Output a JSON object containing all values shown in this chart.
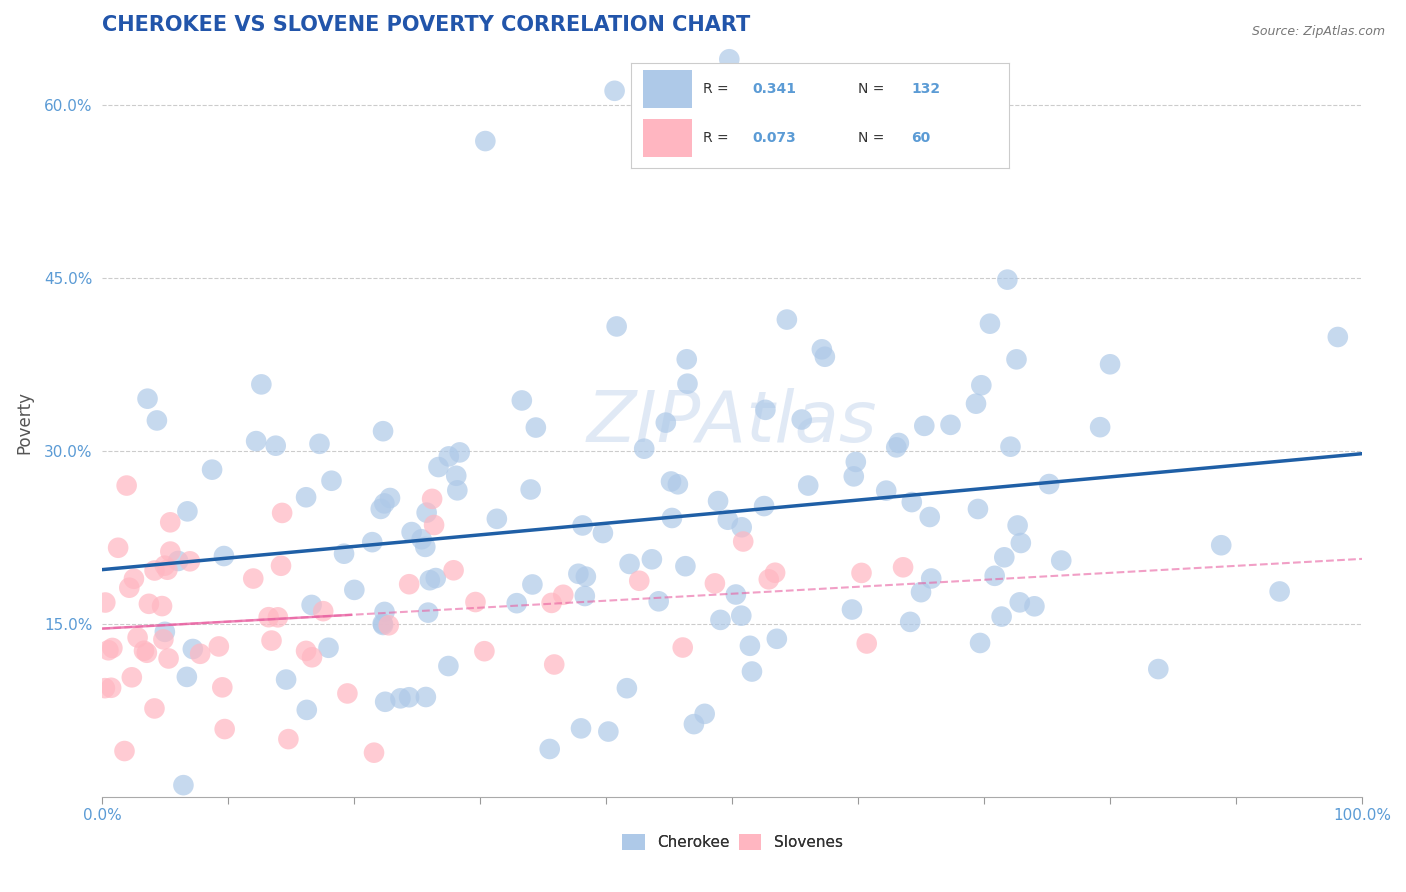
{
  "title": "CHEROKEE VS SLOVENE POVERTY CORRELATION CHART",
  "source": "Source: ZipAtlas.com",
  "ylabel": "Poverty",
  "xlim": [
    0.0,
    1.0
  ],
  "ylim": [
    0.0,
    0.65
  ],
  "xticks": [
    0.0,
    0.1,
    0.2,
    0.3,
    0.4,
    0.5,
    0.6,
    0.7,
    0.8,
    0.9,
    1.0
  ],
  "xticklabels": [
    "0.0%",
    "",
    "",
    "",
    "",
    "",
    "",
    "",
    "",
    "",
    "100.0%"
  ],
  "yticks": [
    0.15,
    0.3,
    0.45,
    0.6
  ],
  "yticklabels": [
    "15.0%",
    "30.0%",
    "45.0%",
    "60.0%"
  ],
  "cherokee_color": "#5b9bd5",
  "cherokee_face": "#aec9e8",
  "slovene_color": "#f768a1",
  "slovene_face": "#ffb6c1",
  "cherokee_R": 0.341,
  "cherokee_N": 132,
  "slovene_R": 0.073,
  "slovene_N": 60,
  "legend_label1": "Cherokee",
  "legend_label2": "Slovenes",
  "title_color": "#2255aa",
  "title_fontsize": 15,
  "watermark": "ZIPAtlas",
  "background_color": "#ffffff",
  "grid_color": "#cccccc",
  "tick_color": "#5b9bd5",
  "cherokee_line_color": "#1f5fa6",
  "slovene_line_color": "#e85fa0",
  "legend_blue": "#5b9bd5",
  "legend_black": "#333333"
}
